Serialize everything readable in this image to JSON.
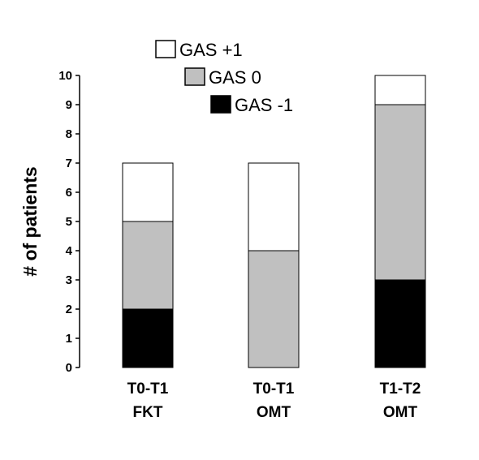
{
  "chart_data": {
    "type": "bar",
    "stacked": true,
    "title": "",
    "xlabel": "",
    "ylabel": "# of patients",
    "ylim": [
      0,
      10
    ],
    "yticks": [
      0,
      1,
      2,
      3,
      4,
      5,
      6,
      7,
      8,
      9,
      10
    ],
    "grid": false,
    "legend_position": "top-left",
    "categories": [
      [
        "T0-T1",
        "FKT"
      ],
      [
        "T0-T1",
        "OMT"
      ],
      [
        "T1-T2",
        "OMT"
      ]
    ],
    "series": [
      {
        "name": "GAS -1",
        "color": "#000000",
        "values": [
          2,
          0,
          3
        ]
      },
      {
        "name": "GAS 0",
        "color": "#c0c0c0",
        "values": [
          3,
          4,
          6
        ]
      },
      {
        "name": "GAS +1",
        "color": "#ffffff",
        "values": [
          2,
          3,
          1
        ]
      }
    ],
    "legend_order": [
      "GAS +1",
      "GAS 0",
      "GAS -1"
    ]
  }
}
